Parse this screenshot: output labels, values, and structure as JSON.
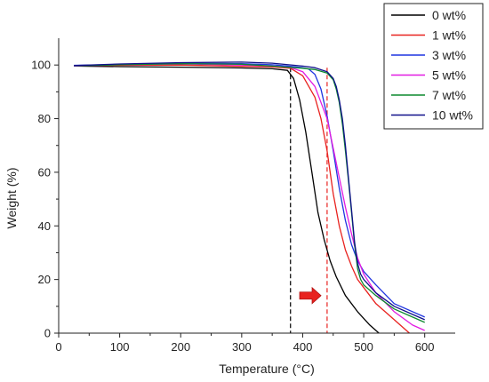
{
  "chart_data": {
    "type": "line",
    "title": "",
    "xlabel": "Temperature (°C)",
    "ylabel": "Weight (%)",
    "xlim": [
      0,
      650
    ],
    "ylim": [
      0,
      110
    ],
    "xticks": [
      0,
      100,
      200,
      300,
      400,
      500,
      600
    ],
    "yticks": [
      0,
      20,
      40,
      60,
      80,
      100
    ],
    "legend_position": "top-right",
    "series": [
      {
        "name": "0 wt%",
        "color": "#000000",
        "x": [
          25,
          100,
          200,
          300,
          350,
          375,
          385,
          395,
          405,
          415,
          425,
          435,
          445,
          455,
          470,
          490,
          510,
          525
        ],
        "y": [
          99.6,
          99.4,
          99.2,
          98.9,
          98.6,
          98.0,
          95,
          87,
          75,
          60,
          45,
          35,
          27,
          21,
          14,
          8,
          3,
          0
        ]
      },
      {
        "name": "1 wt%",
        "color": "#e8221f",
        "x": [
          25,
          100,
          200,
          300,
          350,
          380,
          400,
          420,
          430,
          440,
          450,
          460,
          470,
          480,
          490,
          500,
          520,
          545,
          565,
          575
        ],
        "y": [
          99.8,
          99.9,
          100.0,
          99.5,
          99.3,
          98.8,
          96,
          88,
          80,
          68,
          52,
          40,
          31,
          25,
          20,
          17,
          11,
          6,
          2,
          0
        ]
      },
      {
        "name": "3 wt%",
        "color": "#1f35e0",
        "x": [
          25,
          100,
          200,
          300,
          350,
          380,
          400,
          410,
          420,
          430,
          440,
          450,
          460,
          470,
          480,
          490,
          500,
          520,
          550,
          600
        ],
        "y": [
          99.9,
          100.2,
          100.6,
          100.5,
          100.1,
          99.5,
          99.0,
          98.5,
          96.5,
          91,
          81,
          68,
          54,
          42,
          33,
          27,
          23,
          18,
          11,
          6
        ]
      },
      {
        "name": "5 wt%",
        "color": "#e21be2",
        "x": [
          25,
          100,
          200,
          300,
          350,
          380,
          400,
          420,
          440,
          450,
          460,
          470,
          480,
          490,
          500,
          520,
          550,
          580,
          600
        ],
        "y": [
          99.6,
          100.1,
          100.4,
          100.0,
          99.6,
          99.1,
          97.5,
          92,
          80,
          69,
          58,
          47,
          37,
          28,
          22,
          15,
          8,
          3,
          1
        ]
      },
      {
        "name": "7 wt%",
        "color": "#0d8a2e",
        "x": [
          25,
          100,
          200,
          300,
          350,
          400,
          420,
          440,
          450,
          455,
          460,
          465,
          470,
          475,
          480,
          485,
          490,
          495,
          500,
          520,
          550,
          580,
          600
        ],
        "y": [
          99.7,
          100.1,
          100.5,
          100.3,
          99.6,
          98.8,
          98.3,
          97.0,
          94.5,
          91.0,
          86.0,
          78,
          68,
          57,
          45,
          33,
          24,
          20,
          18,
          14,
          9,
          6,
          4
        ]
      },
      {
        "name": "10 wt%",
        "color": "#10108a",
        "x": [
          25,
          100,
          200,
          300,
          350,
          400,
          420,
          440,
          450,
          455,
          460,
          465,
          470,
          475,
          480,
          485,
          490,
          495,
          500,
          520,
          550,
          580,
          600
        ],
        "y": [
          99.8,
          100.4,
          100.9,
          101.1,
          100.7,
          99.6,
          99.0,
          97.5,
          95.0,
          92.0,
          87.0,
          80,
          70,
          58,
          46,
          34,
          26,
          22,
          20,
          15,
          10,
          7,
          5
        ]
      }
    ],
    "annotations": [
      {
        "type": "vline",
        "x": 380,
        "color": "#000000",
        "style": "dashed"
      },
      {
        "type": "vline",
        "x": 440,
        "color": "#e8221f",
        "style": "dashed"
      },
      {
        "type": "arrow",
        "direction": "right",
        "color": "#e8221f"
      }
    ]
  }
}
